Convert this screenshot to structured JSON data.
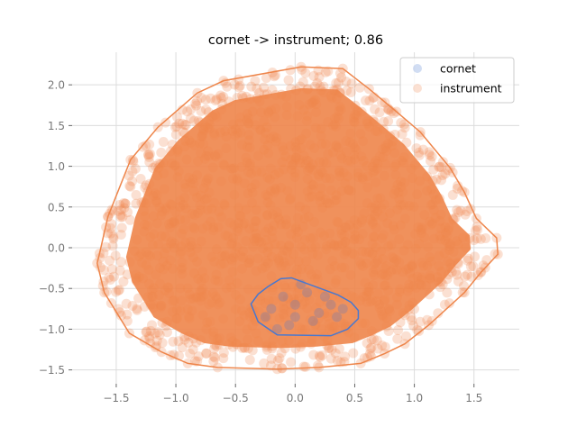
{
  "chart_data": {
    "type": "scatter",
    "title": "cornet -> instrument; 0.86",
    "xlabel": "",
    "ylabel": "",
    "xlim": [
      -1.87,
      1.88
    ],
    "ylim": [
      -1.67,
      2.4
    ],
    "x_ticks": [
      -1.5,
      -1.0,
      -0.5,
      0.0,
      0.5,
      1.0,
      1.5
    ],
    "x_tick_labels": [
      "−1.5",
      "−1.0",
      "−0.5",
      "0.0",
      "0.5",
      "1.0",
      "1.5"
    ],
    "y_ticks": [
      -1.5,
      -1.0,
      -0.5,
      0.0,
      0.5,
      1.0,
      1.5,
      2.0
    ],
    "y_tick_labels": [
      "−1.5",
      "−1.0",
      "−0.5",
      "0.0",
      "0.5",
      "1.0",
      "1.5",
      "2.0"
    ],
    "grid": true,
    "legend": {
      "placement": "top-right"
    },
    "series": [
      {
        "name": "cornet",
        "color": "#4878d0",
        "point_alpha": 0.25,
        "hull": [
          [
            -0.37,
            -0.69
          ],
          [
            -0.31,
            -0.57
          ],
          [
            -0.23,
            -0.48
          ],
          [
            -0.12,
            -0.38
          ],
          [
            -0.03,
            -0.37
          ],
          [
            0.36,
            -0.58
          ],
          [
            0.47,
            -0.67
          ],
          [
            0.53,
            -0.77
          ],
          [
            0.53,
            -0.87
          ],
          [
            0.44,
            -1.0
          ],
          [
            0.3,
            -1.08
          ],
          [
            -0.15,
            -1.07
          ],
          [
            -0.31,
            -0.91
          ]
        ],
        "points": [
          [
            -0.2,
            -0.75
          ],
          [
            -0.1,
            -0.6
          ],
          [
            0.0,
            -0.7
          ],
          [
            0.1,
            -0.55
          ],
          [
            0.2,
            -0.8
          ],
          [
            0.3,
            -0.7
          ],
          [
            0.15,
            -0.9
          ],
          [
            -0.05,
            -0.95
          ],
          [
            0.35,
            -0.85
          ],
          [
            -0.25,
            -0.85
          ],
          [
            0.05,
            -0.45
          ],
          [
            0.4,
            -0.75
          ],
          [
            -0.15,
            -1.0
          ],
          [
            0.25,
            -0.6
          ],
          [
            0.0,
            -0.85
          ]
        ]
      },
      {
        "name": "instrument",
        "color": "#ee854a",
        "point_alpha": 0.25,
        "hull": [
          [
            -1.64,
            -0.07
          ],
          [
            -1.66,
            -0.19
          ],
          [
            -1.6,
            -0.55
          ],
          [
            -1.39,
            -1.05
          ],
          [
            -1.12,
            -1.28
          ],
          [
            -0.9,
            -1.42
          ],
          [
            -0.65,
            -1.47
          ],
          [
            -0.15,
            -1.49
          ],
          [
            0.2,
            -1.47
          ],
          [
            0.55,
            -1.42
          ],
          [
            0.75,
            -1.3
          ],
          [
            0.92,
            -1.18
          ],
          [
            1.12,
            -0.95
          ],
          [
            1.42,
            -0.55
          ],
          [
            1.56,
            -0.3
          ],
          [
            1.7,
            -0.08
          ],
          [
            1.69,
            0.12
          ],
          [
            1.52,
            0.36
          ],
          [
            1.42,
            0.68
          ],
          [
            1.3,
            0.98
          ],
          [
            1.05,
            1.42
          ],
          [
            0.85,
            1.67
          ],
          [
            0.62,
            1.95
          ],
          [
            0.4,
            2.2
          ],
          [
            0.05,
            2.22
          ],
          [
            -0.6,
            2.05
          ],
          [
            -0.82,
            1.9
          ],
          [
            -1.15,
            1.48
          ],
          [
            -1.38,
            1.08
          ],
          [
            -1.57,
            0.38
          ]
        ]
      }
    ]
  }
}
